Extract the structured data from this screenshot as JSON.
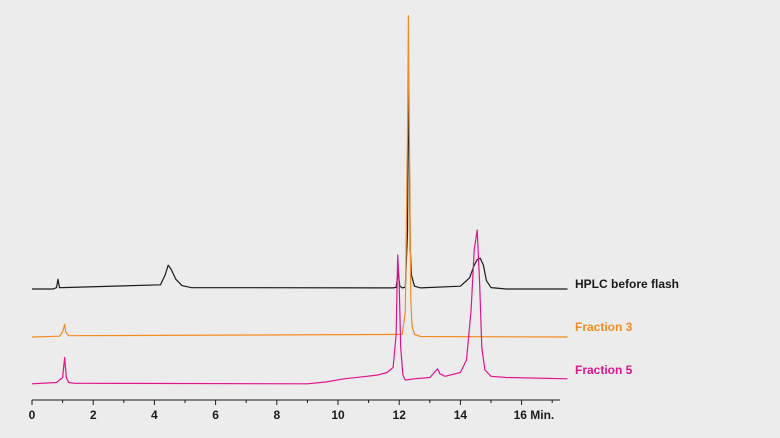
{
  "chart_data": {
    "type": "line",
    "title": "",
    "xlabel": "Min.",
    "ylabel": "",
    "xlim": [
      0,
      17.5
    ],
    "x_ticks": [
      0,
      2,
      4,
      6,
      8,
      10,
      12,
      14,
      16
    ],
    "x_tick_labels": [
      "0",
      "2",
      "4",
      "6",
      "8",
      "10",
      "12",
      "14",
      "16 Min."
    ],
    "grid": false,
    "legend_position": "right, beside each trace",
    "series": [
      {
        "name": "HPLC before flash",
        "color": "#1a1a1a",
        "x": [
          0,
          0.7,
          0.8,
          0.85,
          0.9,
          1.0,
          4.2,
          4.35,
          4.45,
          4.55,
          4.7,
          4.9,
          5.2,
          11.6,
          11.8,
          11.9,
          11.97,
          12.02,
          12.1,
          12.2,
          12.27,
          12.3,
          12.33,
          12.36,
          12.4,
          12.5,
          12.7,
          14.0,
          14.3,
          14.45,
          14.55,
          14.65,
          14.75,
          14.85,
          15.0,
          15.5,
          17.5
        ],
        "y": [
          0,
          0,
          0.005,
          0.035,
          0.005,
          0.005,
          0.015,
          0.05,
          0.085,
          0.07,
          0.035,
          0.012,
          0.005,
          0.004,
          0.004,
          0.006,
          0.06,
          0.01,
          0.004,
          0.006,
          0.2,
          0.75,
          0.5,
          0.15,
          0.05,
          0.01,
          0.004,
          0.01,
          0.04,
          0.085,
          0.105,
          0.11,
          0.085,
          0.03,
          0.005,
          0.0,
          0.0
        ]
      },
      {
        "name": "Fraction 3",
        "color": "#f08c20",
        "x": [
          0,
          0.9,
          1.0,
          1.07,
          1.1,
          1.2,
          1.3,
          12.1,
          12.2,
          12.27,
          12.3,
          12.34,
          12.38,
          12.42,
          12.5,
          12.7,
          17.5
        ],
        "y": [
          0,
          0.003,
          0.02,
          0.05,
          0.02,
          0.005,
          0.005,
          0.01,
          0.1,
          0.8,
          1.26,
          0.7,
          0.15,
          0.04,
          0.01,
          0.002,
          0.0
        ]
      },
      {
        "name": "Fraction 5",
        "color": "#e0148c",
        "x": [
          0,
          0.8,
          1.0,
          1.07,
          1.12,
          1.2,
          1.4,
          1.8,
          9.0,
          9.6,
          10.2,
          10.8,
          11.3,
          11.6,
          11.8,
          11.9,
          11.95,
          12.0,
          12.05,
          12.12,
          12.2,
          12.5,
          13.0,
          13.15,
          13.25,
          13.33,
          13.5,
          14.0,
          14.2,
          14.35,
          14.45,
          14.55,
          14.63,
          14.7,
          14.8,
          15.0,
          15.5,
          17.5
        ],
        "y": [
          0.005,
          0.01,
          0.03,
          0.11,
          0.03,
          0.01,
          0.007,
          0.007,
          0.005,
          0.012,
          0.025,
          0.033,
          0.04,
          0.05,
          0.07,
          0.2,
          0.52,
          0.4,
          0.15,
          0.04,
          0.02,
          0.025,
          0.03,
          0.05,
          0.065,
          0.045,
          0.035,
          0.05,
          0.1,
          0.3,
          0.54,
          0.62,
          0.4,
          0.15,
          0.06,
          0.035,
          0.03,
          0.025
        ]
      }
    ]
  }
}
